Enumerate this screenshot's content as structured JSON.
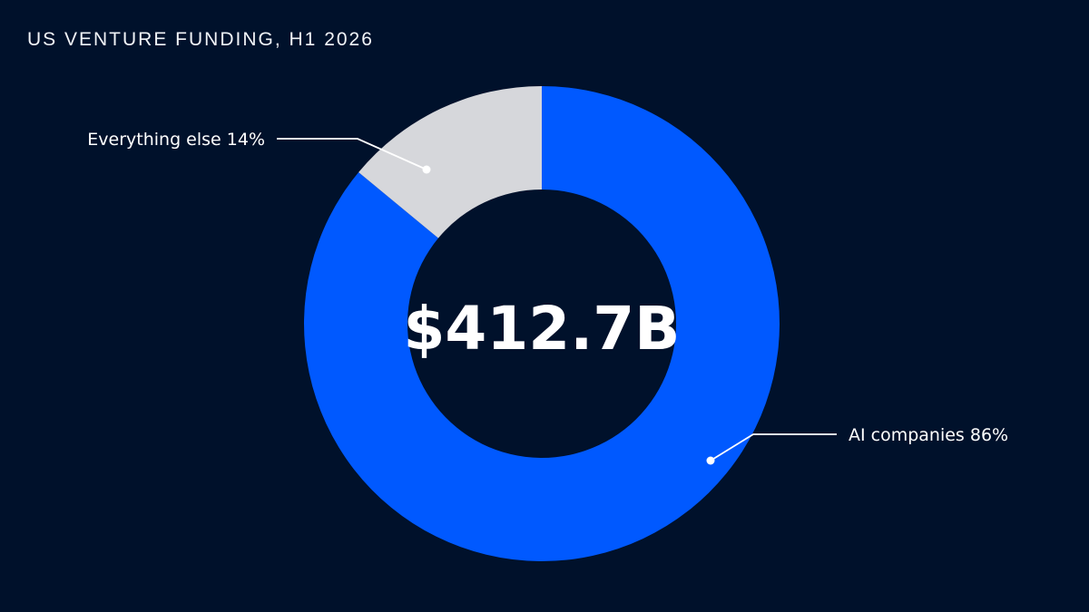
{
  "colors": {
    "background": "#00112b",
    "ai": "#0059ff",
    "other": "#d6d7db",
    "text": "#ffffff"
  },
  "chart_data": {
    "type": "pie",
    "title": "US VENTURE FUNDING, H1 2026",
    "center_label": "$412.7B",
    "slices": [
      {
        "label": "AI companies 86%",
        "value": 86,
        "color": "#0059ff"
      },
      {
        "label": "Everything else 14%",
        "value": 14,
        "color": "#d6d7db"
      }
    ]
  }
}
